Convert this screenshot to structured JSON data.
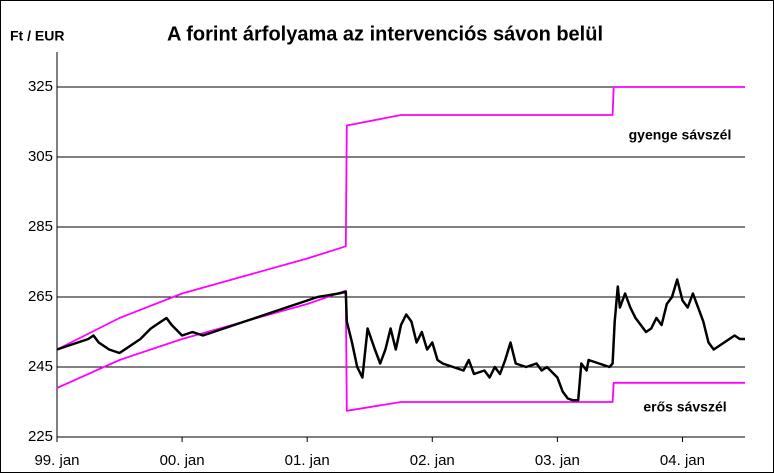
{
  "chart_data": {
    "type": "line",
    "title": "A forint árfolyama az intervenciós sávon belül",
    "y_label": "Ft / EUR",
    "annotations": [
      "gyenge sávszél",
      "erős sávszél"
    ],
    "xlim": [
      0,
      66
    ],
    "xticks": [
      {
        "value": 0,
        "label": "99. jan"
      },
      {
        "value": 12,
        "label": "00. jan"
      },
      {
        "value": 24,
        "label": "01. jan"
      },
      {
        "value": 36,
        "label": "02. jan"
      },
      {
        "value": 48,
        "label": "03. jan"
      },
      {
        "value": 60,
        "label": "04. jan"
      }
    ],
    "ylim": [
      225,
      335
    ],
    "yticks": [
      225,
      245,
      265,
      285,
      305,
      325
    ],
    "grid": true,
    "series": [
      {
        "name": "gyenge sávszél",
        "color": "#ff00ff",
        "x": [
          0,
          6,
          12,
          18,
          24,
          27.7,
          27.8,
          33,
          53.3,
          53.4,
          66
        ],
        "values": [
          250,
          259,
          266,
          271,
          276,
          279.5,
          314,
          317,
          317,
          325,
          325
        ]
      },
      {
        "name": "erős sávszél",
        "color": "#ff00ff",
        "x": [
          0,
          6,
          12,
          18,
          24,
          27.7,
          27.8,
          33,
          53.3,
          53.4,
          66
        ],
        "values": [
          239,
          247,
          253,
          258,
          263,
          266.8,
          232.5,
          235,
          235,
          240.5,
          240.5
        ]
      },
      {
        "name": "árfolyam",
        "color": "#000000",
        "x": [
          0,
          1,
          2,
          3,
          3.5,
          4,
          5,
          6,
          7,
          8,
          9,
          10,
          10.5,
          11,
          12,
          13,
          14,
          15,
          16,
          17,
          18,
          19,
          20,
          21,
          22,
          23,
          24,
          25,
          26,
          27,
          27.7,
          27.8,
          28.3,
          28.8,
          29.3,
          29.8,
          30.5,
          31,
          31.5,
          32,
          32.5,
          33,
          33.5,
          34,
          34.5,
          35,
          35.5,
          36,
          36.5,
          37,
          38,
          39,
          39.5,
          40,
          41,
          41.5,
          42,
          42.5,
          43,
          43.5,
          44,
          45,
          46,
          46.5,
          47,
          48,
          48.5,
          49,
          49.5,
          50,
          50.3,
          50.8,
          51,
          52,
          53,
          53.3,
          53.5,
          53.8,
          54,
          54.5,
          55,
          55.5,
          56,
          56.5,
          57,
          57.5,
          58,
          58.5,
          59,
          59.5,
          60,
          60.5,
          61,
          61.5,
          62,
          62.5,
          63,
          64,
          65,
          65.5,
          66
        ],
        "values": [
          250,
          251,
          252,
          253,
          254,
          252,
          250,
          249,
          251,
          253,
          256,
          258,
          259,
          257,
          254,
          255,
          254,
          255,
          256,
          257,
          258,
          259,
          260,
          261,
          262,
          263,
          264,
          265,
          265.5,
          266,
          266.5,
          258,
          252,
          245,
          242,
          256,
          250,
          246,
          250,
          256,
          250,
          257,
          260,
          258,
          252,
          255,
          250,
          252,
          247,
          246,
          245,
          244,
          247,
          243,
          244,
          242,
          245,
          243,
          247,
          252,
          246,
          245,
          246,
          244,
          245,
          242,
          238,
          236,
          235.5,
          235.5,
          246,
          244,
          247,
          246,
          245,
          246,
          258,
          268,
          262,
          266,
          262,
          259,
          257,
          255,
          256,
          259,
          257,
          263,
          265,
          270,
          264,
          262,
          266,
          262,
          258,
          252,
          250,
          252,
          254,
          253,
          253
        ]
      }
    ]
  }
}
